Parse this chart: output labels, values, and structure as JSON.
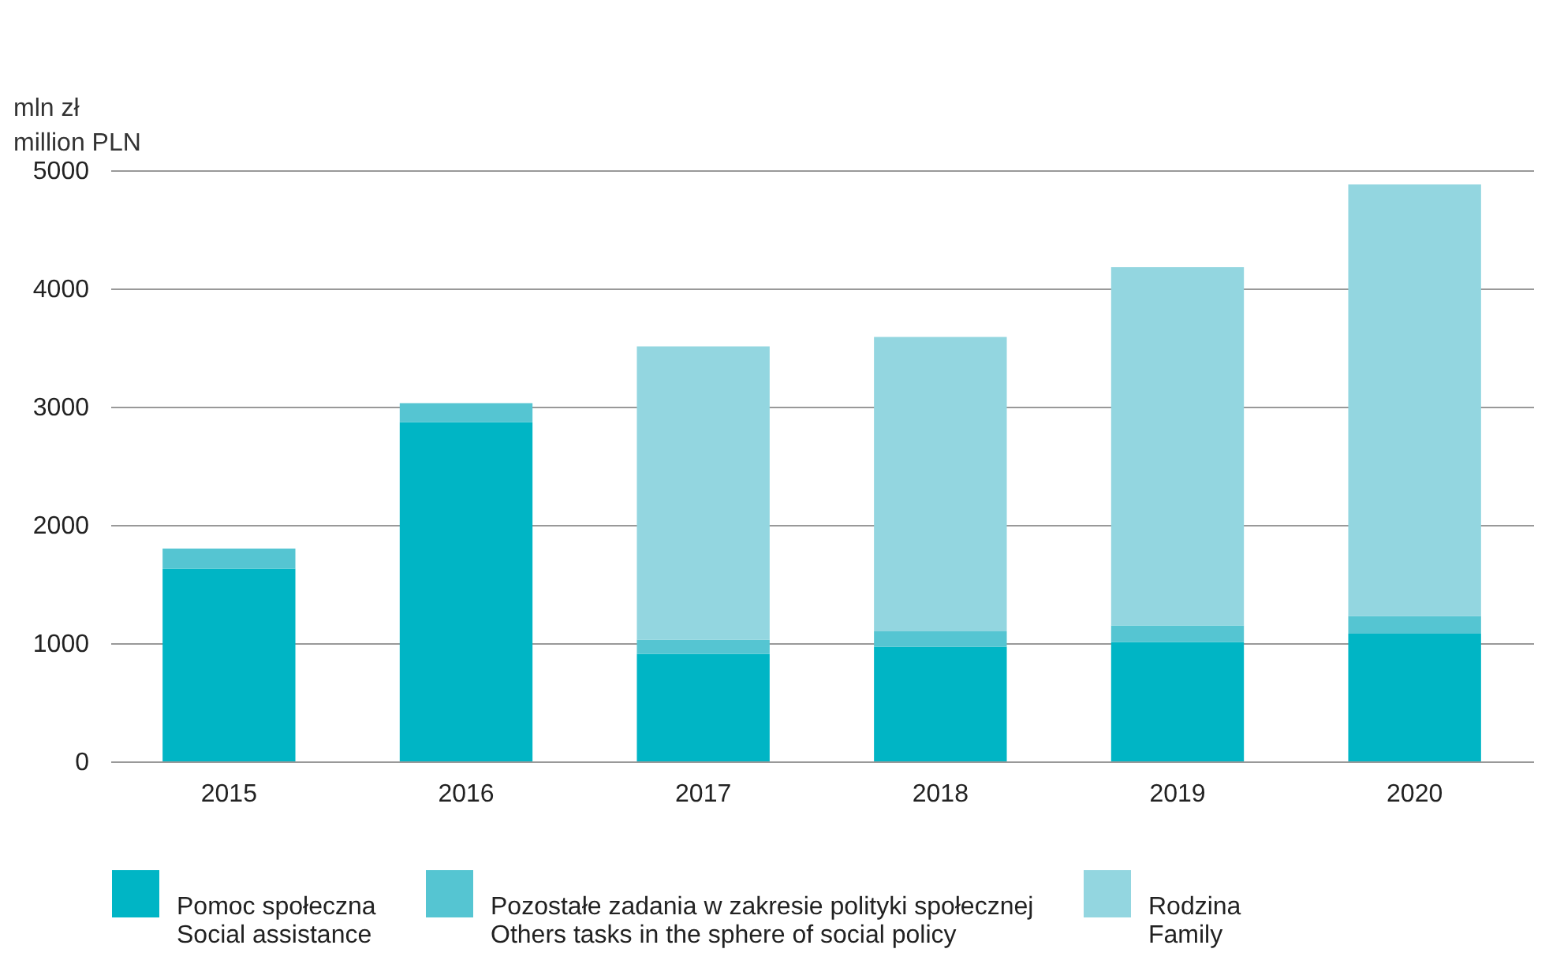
{
  "chart_data": {
    "type": "bar",
    "stacked": true,
    "ylabel": "mln zł\nmillion PLN",
    "categories": [
      "2015",
      "2016",
      "2017",
      "2018",
      "2019",
      "2020"
    ],
    "series": [
      {
        "name": "Pomoc społeczna\nSocial assistance",
        "color": "#00b5c5",
        "values": [
          1630,
          2870,
          910,
          970,
          1010,
          1080
        ]
      },
      {
        "name": "Pozostałe zadania w zakresie polityki społecznej\nOthers tasks in the sphere of social policy",
        "color": "#55c5d2",
        "values": [
          170,
          160,
          120,
          130,
          140,
          150
        ]
      },
      {
        "name": "Rodzina\nFamily",
        "color": "#93d6e0",
        "values": [
          0,
          0,
          2480,
          2490,
          3030,
          3650
        ]
      }
    ],
    "ylim": [
      0,
      5000
    ],
    "yticks": [
      0,
      1000,
      2000,
      3000,
      4000,
      5000
    ],
    "grid": "y",
    "legend": "bottom"
  }
}
